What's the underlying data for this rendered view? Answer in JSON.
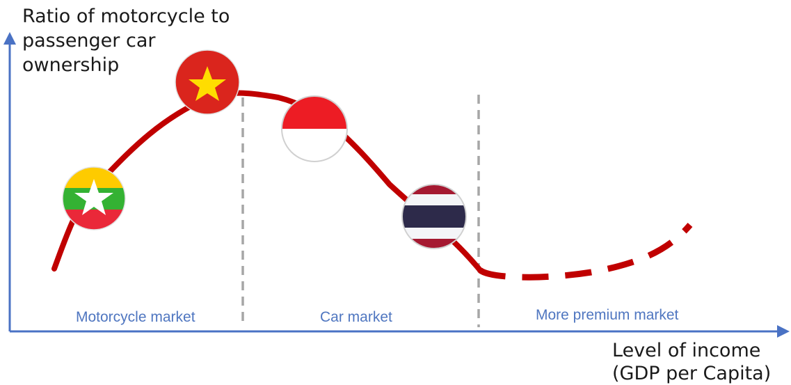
{
  "y_axis_label": [
    "Ratio of  motorcycle to",
    "passenger car",
    "ownership"
  ],
  "x_axis_label": [
    "Level of income",
    "(GDP per Capita)"
  ],
  "segments": [
    {
      "label": "Motorcycle market"
    },
    {
      "label": "Car market"
    },
    {
      "label": "More premium market"
    }
  ],
  "countries": [
    {
      "flag": "myanmar-flag",
      "colors": [
        "#fecb00",
        "#34b233",
        "#ea2839",
        "#ffffff"
      ]
    },
    {
      "flag": "vietnam-flag",
      "colors": [
        "#da251d",
        "#ffdd00"
      ]
    },
    {
      "flag": "indonesia-flag",
      "colors": [
        "#ed1c24",
        "#ffffff"
      ]
    },
    {
      "flag": "thailand-flag",
      "colors": [
        "#a51931",
        "#f4f5f8",
        "#2d2a4a"
      ]
    }
  ],
  "colors": {
    "curve": "#c00000",
    "axis": "#4a72c4",
    "divider": "#a6a6a6",
    "segment_text": "#4f76c0"
  }
}
